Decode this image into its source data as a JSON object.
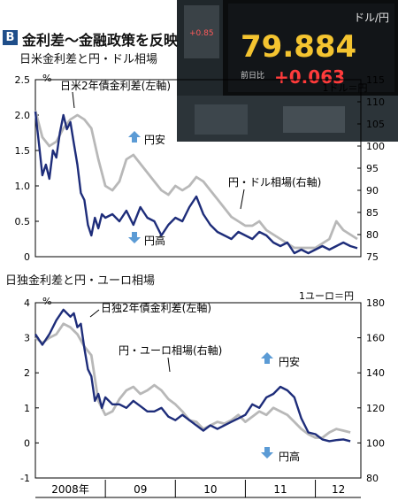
{
  "header": {
    "badge": "B",
    "title": "金利差～金融政策を反映"
  },
  "photo": {
    "rate": "79.884",
    "change": "+0.063",
    "sign": "ドル/円",
    "sub_label": "前日比",
    "small": "+0.85"
  },
  "colors": {
    "spread": "#1e2d7a",
    "fx": "#b8b8b8",
    "arrow": "#5b9bd5",
    "axis": "#000000"
  },
  "chart_data": [
    {
      "type": "line",
      "subtitle": "日米金利差と円・ドル相場",
      "left_unit": "%",
      "right_unit": "1ドル＝円",
      "left_ticks": [
        "2.5",
        "2.0",
        "1.5",
        "1.0",
        "0.5",
        "0"
      ],
      "right_ticks": [
        "115",
        "110",
        "105",
        "100",
        "95",
        "90",
        "85",
        "80",
        "75"
      ],
      "ylim_left": [
        0,
        2.5
      ],
      "ylim_right": [
        75,
        115
      ],
      "annotations": {
        "spread": "日米2年債金利差(左軸)",
        "fx": "円・ドル相場(右軸)",
        "up": "円安",
        "down": "円高"
      },
      "series": [
        {
          "name": "日米2年債金利差(左軸)",
          "axis": "left",
          "x": [
            2008.0,
            2008.05,
            2008.1,
            2008.15,
            2008.2,
            2008.25,
            2008.3,
            2008.35,
            2008.4,
            2008.45,
            2008.5,
            2008.55,
            2008.6,
            2008.65,
            2008.7,
            2008.75,
            2008.8,
            2008.85,
            2008.9,
            2008.95,
            2009.0,
            2009.1,
            2009.2,
            2009.3,
            2009.4,
            2009.5,
            2009.6,
            2009.7,
            2009.8,
            2009.9,
            2010.0,
            2010.1,
            2010.2,
            2010.3,
            2010.4,
            2010.5,
            2010.6,
            2010.7,
            2010.8,
            2010.9,
            2011.0,
            2011.1,
            2011.2,
            2011.3,
            2011.4,
            2011.5,
            2011.6,
            2011.7,
            2011.8,
            2011.9,
            2012.0,
            2012.1,
            2012.2,
            2012.3,
            2012.4,
            2012.5,
            2012.6
          ],
          "values": [
            2.05,
            1.6,
            1.15,
            1.3,
            1.1,
            1.5,
            1.4,
            1.75,
            2.0,
            1.8,
            1.9,
            1.6,
            1.3,
            0.9,
            0.8,
            0.45,
            0.3,
            0.55,
            0.4,
            0.6,
            0.55,
            0.6,
            0.5,
            0.65,
            0.45,
            0.7,
            0.55,
            0.5,
            0.3,
            0.45,
            0.55,
            0.5,
            0.7,
            0.85,
            0.6,
            0.45,
            0.35,
            0.3,
            0.25,
            0.35,
            0.3,
            0.25,
            0.35,
            0.3,
            0.2,
            0.15,
            0.2,
            0.05,
            0.1,
            0.05,
            0.1,
            0.15,
            0.1,
            0.15,
            0.2,
            0.15,
            0.12
          ]
        },
        {
          "name": "円・ドル相場(右軸)",
          "axis": "right",
          "x": [
            2008.0,
            2008.1,
            2008.2,
            2008.3,
            2008.4,
            2008.5,
            2008.6,
            2008.7,
            2008.8,
            2008.9,
            2009.0,
            2009.1,
            2009.2,
            2009.3,
            2009.4,
            2009.5,
            2009.6,
            2009.7,
            2009.8,
            2009.9,
            2010.0,
            2010.1,
            2010.2,
            2010.3,
            2010.4,
            2010.5,
            2010.6,
            2010.7,
            2010.8,
            2010.9,
            2011.0,
            2011.1,
            2011.2,
            2011.3,
            2011.4,
            2011.5,
            2011.6,
            2011.7,
            2011.8,
            2011.9,
            2012.0,
            2012.1,
            2012.2,
            2012.3,
            2012.4,
            2012.5,
            2012.6
          ],
          "values": [
            108,
            102,
            100,
            101,
            104,
            106,
            107,
            106,
            104,
            97,
            91,
            90,
            92,
            97,
            98,
            96,
            94,
            92,
            90,
            89,
            91,
            90,
            91,
            93,
            92,
            90,
            88,
            86,
            84,
            83,
            82,
            82,
            83,
            81,
            80,
            79,
            78,
            77,
            77,
            77,
            77,
            78,
            79,
            83,
            81,
            80,
            79
          ]
        }
      ]
    },
    {
      "type": "line",
      "subtitle": "日独金利差と円・ユーロ相場",
      "left_unit": "%",
      "right_unit": "1ユーロ＝円",
      "left_ticks": [
        "4",
        "3",
        "2",
        "1",
        "0",
        "-1"
      ],
      "right_ticks": [
        "180",
        "160",
        "140",
        "120",
        "100",
        "80"
      ],
      "ylim_left": [
        -1,
        4
      ],
      "ylim_right": [
        80,
        180
      ],
      "x_ticks": [
        "2008年",
        "09",
        "10",
        "11",
        "12"
      ],
      "annotations": {
        "spread": "日独2年債金利差(左軸)",
        "fx": "円・ユーロ相場(右軸)",
        "up": "円安",
        "down": "円高"
      },
      "series": [
        {
          "name": "日独2年債金利差(左軸)",
          "axis": "left",
          "x": [
            2008.0,
            2008.1,
            2008.2,
            2008.3,
            2008.4,
            2008.5,
            2008.55,
            2008.6,
            2008.65,
            2008.7,
            2008.75,
            2008.8,
            2008.85,
            2008.9,
            2008.95,
            2009.0,
            2009.1,
            2009.2,
            2009.3,
            2009.4,
            2009.5,
            2009.6,
            2009.7,
            2009.8,
            2009.9,
            2010.0,
            2010.1,
            2010.2,
            2010.3,
            2010.4,
            2010.5,
            2010.6,
            2010.7,
            2010.8,
            2010.9,
            2011.0,
            2011.1,
            2011.2,
            2011.3,
            2011.4,
            2011.5,
            2011.6,
            2011.7,
            2011.8,
            2011.9,
            2012.0,
            2012.1,
            2012.2,
            2012.3,
            2012.4,
            2012.5
          ],
          "values": [
            3.1,
            2.8,
            3.1,
            3.5,
            3.8,
            3.6,
            3.7,
            3.3,
            3.4,
            2.7,
            2.1,
            1.9,
            1.2,
            1.4,
            1.0,
            1.3,
            1.1,
            1.1,
            1.0,
            1.2,
            1.05,
            0.9,
            0.9,
            1.0,
            0.75,
            0.65,
            0.8,
            0.65,
            0.5,
            0.35,
            0.5,
            0.4,
            0.5,
            0.6,
            0.7,
            0.8,
            1.1,
            1.0,
            1.3,
            1.4,
            1.6,
            1.5,
            1.3,
            0.7,
            0.3,
            0.25,
            0.1,
            0.05,
            0.08,
            0.1,
            0.05
          ]
        },
        {
          "name": "円・ユーロ相場(右軸)",
          "axis": "right",
          "x": [
            2008.0,
            2008.1,
            2008.2,
            2008.3,
            2008.4,
            2008.5,
            2008.6,
            2008.7,
            2008.8,
            2008.9,
            2009.0,
            2009.1,
            2009.2,
            2009.3,
            2009.4,
            2009.5,
            2009.6,
            2009.7,
            2009.8,
            2009.9,
            2010.0,
            2010.1,
            2010.2,
            2010.3,
            2010.4,
            2010.5,
            2010.6,
            2010.7,
            2010.8,
            2010.9,
            2011.0,
            2011.1,
            2011.2,
            2011.3,
            2011.4,
            2011.5,
            2011.6,
            2011.7,
            2011.8,
            2011.9,
            2012.0,
            2012.1,
            2012.2,
            2012.3,
            2012.4,
            2012.5
          ],
          "values": [
            160,
            157,
            160,
            162,
            168,
            166,
            162,
            155,
            150,
            124,
            116,
            118,
            125,
            130,
            132,
            128,
            130,
            133,
            130,
            125,
            122,
            118,
            113,
            112,
            108,
            110,
            112,
            111,
            113,
            116,
            112,
            115,
            118,
            116,
            120,
            118,
            116,
            112,
            108,
            105,
            103,
            103,
            106,
            108,
            107,
            106
          ]
        }
      ]
    }
  ]
}
